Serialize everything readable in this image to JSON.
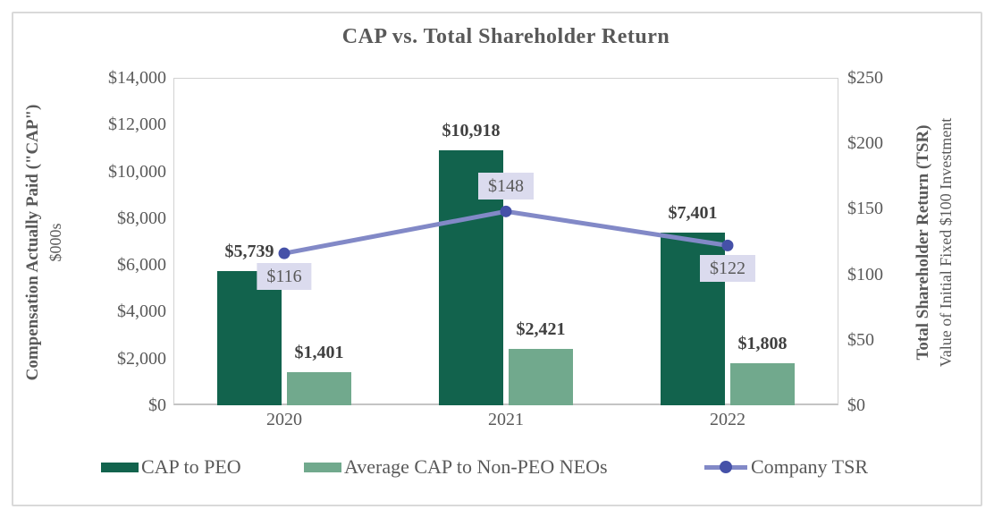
{
  "title": "CAP vs. Total Shareholder Return",
  "left_axis": {
    "title_bold": "Compensation Actually Paid (\"CAP\")",
    "title_sub": "$000s",
    "ticks": [
      "$14,000",
      "$12,000",
      "$10,000",
      "$8,000",
      "$6,000",
      "$4,000",
      "$2,000",
      "$0"
    ]
  },
  "right_axis": {
    "title_bold": "Total Shareholder Return (TSR)",
    "title_sub": "Value of Initial Fixed $100 Investment",
    "ticks": [
      "$250",
      "$200",
      "$150",
      "$100",
      "$50",
      "$0"
    ]
  },
  "chart_data": {
    "type": "bar",
    "subtype": "combo-bar-line-dual-axis",
    "title": "CAP vs. Total Shareholder Return",
    "categories": [
      "2020",
      "2021",
      "2022"
    ],
    "series": [
      {
        "name": "CAP to PEO",
        "type": "bar",
        "axis": "left",
        "color": "#12634D",
        "values": [
          5739,
          10918,
          7401
        ],
        "labels": [
          "$5,739",
          "$10,918",
          "$7,401"
        ]
      },
      {
        "name": "Average CAP to Non-PEO NEOs",
        "type": "bar",
        "axis": "left",
        "color": "#71A98D",
        "values": [
          1401,
          2421,
          1808
        ],
        "labels": [
          "$1,401",
          "$2,421",
          "$1,808"
        ]
      },
      {
        "name": "Company TSR",
        "type": "line",
        "axis": "right",
        "color": "#8289C7",
        "marker_color": "#4551A8",
        "label_bg": "#DBDBEE",
        "values": [
          116,
          148,
          122
        ],
        "labels": [
          "$116",
          "$148",
          "$122"
        ],
        "label_positions": [
          "below",
          "above",
          "below"
        ]
      }
    ],
    "left_ylim": [
      0,
      14000
    ],
    "right_ylim": [
      0,
      250
    ],
    "grid": false,
    "legend_position": "bottom"
  },
  "colors": {
    "title_text": "#595959",
    "axis_text": "#595959",
    "bar_label_text": "#404040",
    "plot_border": "#D2D2D2",
    "frame_border": "#D9D9D9"
  }
}
